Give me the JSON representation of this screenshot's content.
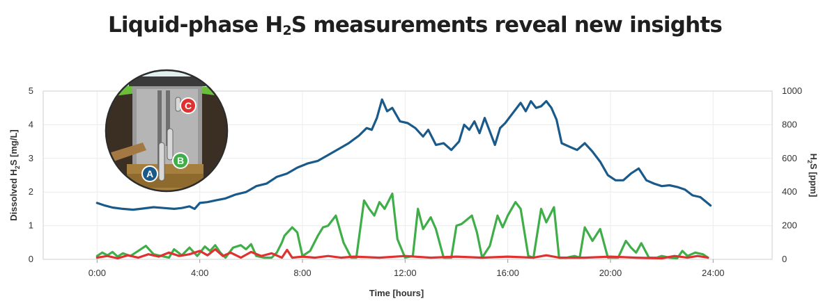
{
  "title": {
    "main": "Liquid-phase H",
    "sub": "2",
    "rest": "S measurements reveal new insights"
  },
  "inset": {
    "labels": [
      "A",
      "B",
      "C"
    ],
    "colors": {
      "A": "#1a5a8a",
      "B": "#3fae49",
      "C": "#e03131"
    }
  },
  "chart_data": {
    "type": "line",
    "xlabel": "Time [hours]",
    "ylabel_left": {
      "main": "Dissolved H",
      "sub": "2",
      "rest": "S [mg/L]"
    },
    "ylabel_right": {
      "main": "H",
      "sub": "2",
      "rest": "S [ppm]"
    },
    "x_ticks": [
      "0:00",
      "4:00",
      "8:00",
      "12:00",
      "16:00",
      "20:00",
      "24:00"
    ],
    "x_tick_values": [
      0,
      4,
      8,
      12,
      16,
      20,
      24
    ],
    "y_left_ticks": [
      "0",
      "1",
      "2",
      "3",
      "4",
      "5"
    ],
    "y_right_ticks": [
      "0",
      "200",
      "400",
      "600",
      "800",
      "1000"
    ],
    "xlim": [
      -2.1,
      26.3
    ],
    "ylim_left": [
      0,
      5
    ],
    "ylim_right": [
      0,
      1000
    ],
    "grid": true,
    "series": [
      {
        "label": "A",
        "color": "#1a5a8a",
        "axis": "right",
        "x": [
          0,
          0.3,
          0.6,
          1,
          1.4,
          1.8,
          2.2,
          2.6,
          3,
          3.3,
          3.6,
          3.8,
          4,
          4.3,
          4.6,
          5,
          5.4,
          5.8,
          6.2,
          6.6,
          7,
          7.4,
          7.8,
          8.2,
          8.6,
          9,
          9.4,
          9.8,
          10.2,
          10.5,
          10.7,
          10.9,
          11.1,
          11.3,
          11.5,
          11.8,
          12.1,
          12.4,
          12.7,
          12.9,
          13.2,
          13.5,
          13.8,
          14.1,
          14.3,
          14.5,
          14.7,
          14.9,
          15.1,
          15.3,
          15.5,
          15.7,
          15.9,
          16.1,
          16.3,
          16.5,
          16.7,
          16.9,
          17.1,
          17.3,
          17.5,
          17.7,
          17.9,
          18.1,
          18.4,
          18.7,
          19,
          19.3,
          19.6,
          19.9,
          20.2,
          20.5,
          20.8,
          21.1,
          21.4,
          21.7,
          22,
          22.3,
          22.6,
          22.9,
          23.2,
          23.5,
          23.7,
          23.9
        ],
        "y": [
          335,
          320,
          308,
          300,
          295,
          302,
          310,
          305,
          300,
          305,
          315,
          300,
          335,
          340,
          350,
          362,
          385,
          400,
          435,
          450,
          490,
          510,
          545,
          570,
          585,
          620,
          655,
          690,
          735,
          780,
          770,
          840,
          950,
          880,
          900,
          820,
          810,
          780,
          730,
          770,
          680,
          690,
          650,
          700,
          800,
          770,
          820,
          750,
          840,
          760,
          680,
          780,
          810,
          850,
          890,
          930,
          880,
          940,
          900,
          910,
          940,
          900,
          830,
          690,
          670,
          650,
          690,
          640,
          580,
          500,
          470,
          470,
          510,
          540,
          470,
          450,
          435,
          440,
          430,
          415,
          380,
          370,
          345,
          320
        ]
      },
      {
        "label": "B",
        "color": "#3fae49",
        "axis": "left",
        "x": [
          0,
          0.2,
          0.4,
          0.6,
          0.8,
          1,
          1.3,
          1.6,
          1.9,
          2.2,
          2.5,
          2.8,
          3,
          3.3,
          3.6,
          3.9,
          4.2,
          4.4,
          4.6,
          4.8,
          5,
          5.3,
          5.6,
          5.8,
          6,
          6.2,
          6.5,
          6.8,
          7,
          7.2,
          7.3,
          7.6,
          7.8,
          8,
          8.3,
          8.6,
          8.8,
          9,
          9.3,
          9.6,
          9.9,
          10.1,
          10.4,
          10.6,
          10.8,
          11,
          11.2,
          11.5,
          11.7,
          12,
          12.3,
          12.5,
          12.7,
          13,
          13.2,
          13.5,
          13.8,
          14,
          14.2,
          14.6,
          14.8,
          15,
          15.3,
          15.6,
          15.8,
          16,
          16.3,
          16.5,
          16.8,
          17,
          17.3,
          17.5,
          17.8,
          18,
          18.3,
          18.6,
          18.8,
          19,
          19.3,
          19.6,
          19.9,
          20.3,
          20.6,
          20.8,
          21,
          21.2,
          21.5,
          21.8,
          22,
          22.3,
          22.6,
          22.8,
          23,
          23.3,
          23.6,
          23.8
        ],
        "y": [
          0.1,
          0.2,
          0.12,
          0.22,
          0.08,
          0.18,
          0.1,
          0.25,
          0.4,
          0.15,
          0.1,
          0.05,
          0.3,
          0.12,
          0.35,
          0.1,
          0.38,
          0.25,
          0.42,
          0.2,
          0.05,
          0.35,
          0.42,
          0.3,
          0.45,
          0.1,
          0.05,
          0.05,
          0.2,
          0.5,
          0.7,
          0.95,
          0.8,
          0.1,
          0.25,
          0.7,
          0.95,
          1.0,
          1.3,
          0.5,
          0.05,
          0.05,
          1.75,
          1.5,
          1.3,
          1.7,
          1.5,
          1.95,
          0.6,
          0.05,
          0.1,
          1.5,
          0.9,
          1.25,
          0.9,
          0.05,
          0.05,
          1.0,
          1.05,
          1.3,
          0.8,
          0.05,
          0.4,
          1.3,
          0.95,
          1.3,
          1.7,
          1.5,
          0.1,
          0.05,
          1.5,
          1.1,
          1.55,
          0.05,
          0.05,
          0.1,
          0.05,
          0.95,
          0.55,
          0.9,
          0.05,
          0.05,
          0.55,
          0.35,
          0.2,
          0.48,
          0.05,
          0.05,
          0.1,
          0.05,
          0.03,
          0.25,
          0.1,
          0.2,
          0.15,
          0.05
        ]
      },
      {
        "label": "C",
        "color": "#e03131",
        "axis": "left",
        "x": [
          0,
          0.4,
          0.8,
          1.2,
          1.6,
          2,
          2.4,
          2.8,
          3.2,
          3.6,
          4,
          4.3,
          4.6,
          4.9,
          5.2,
          5.6,
          6,
          6.4,
          6.8,
          7.2,
          7.4,
          7.6,
          8,
          8.5,
          9,
          9.5,
          10,
          11,
          12,
          13,
          14,
          15,
          16,
          17,
          17.5,
          18,
          19,
          20,
          21,
          22,
          22.5,
          23,
          23.4,
          23.8
        ],
        "y": [
          0.05,
          0.1,
          0.03,
          0.12,
          0.05,
          0.15,
          0.08,
          0.2,
          0.1,
          0.15,
          0.25,
          0.12,
          0.3,
          0.1,
          0.2,
          0.05,
          0.22,
          0.1,
          0.18,
          0.05,
          0.28,
          0.05,
          0.08,
          0.05,
          0.1,
          0.05,
          0.08,
          0.05,
          0.1,
          0.05,
          0.08,
          0.05,
          0.08,
          0.05,
          0.12,
          0.05,
          0.05,
          0.08,
          0.05,
          0.03,
          0.1,
          0.05,
          0.1,
          0.05
        ]
      }
    ]
  }
}
